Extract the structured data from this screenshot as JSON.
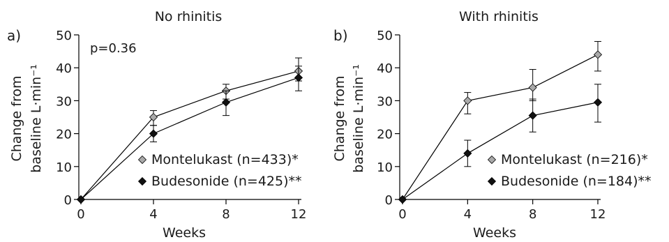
{
  "chart_data": [
    {
      "panel_label": "a)",
      "type": "line",
      "title": "No rhinitis",
      "xlabel": "Weeks",
      "ylabel_lines": [
        "Change from",
        "baseline L·min⁻¹"
      ],
      "annotation": "p=0.36",
      "xlim": [
        0,
        12
      ],
      "ylim": [
        0,
        50
      ],
      "xticks": [
        0,
        4,
        8,
        12
      ],
      "yticks": [
        0,
        10,
        20,
        30,
        40,
        50
      ],
      "x": [
        0,
        4,
        8,
        12
      ],
      "legend_position": "bottom-right",
      "series": [
        {
          "name": "Montelukast (n=433)*",
          "marker": "diamond",
          "color": "#a9a9a9",
          "values": [
            0,
            25,
            33,
            39
          ],
          "err_low": [
            0,
            2.5,
            2.5,
            3
          ],
          "err_high": [
            0,
            2,
            2,
            4
          ]
        },
        {
          "name": "Budesonide (n=425)**",
          "marker": "diamond",
          "color": "#111111",
          "values": [
            0,
            20,
            29.5,
            37
          ],
          "err_low": [
            0,
            2.5,
            4,
            4
          ],
          "err_high": [
            0,
            2.5,
            3.5,
            3.5
          ]
        }
      ]
    },
    {
      "panel_label": "b)",
      "type": "line",
      "title": "With rhinitis",
      "xlabel": "Weeks",
      "ylabel_lines": [
        "Change from",
        "baseline L·min⁻¹"
      ],
      "annotation": "",
      "xlim": [
        0,
        12
      ],
      "ylim": [
        0,
        50
      ],
      "xticks": [
        0,
        4,
        8,
        12
      ],
      "yticks": [
        0,
        10,
        20,
        30,
        40,
        50
      ],
      "x": [
        0,
        4,
        8,
        12
      ],
      "legend_position": "bottom-right",
      "series": [
        {
          "name": "Montelukast (n=216)*",
          "marker": "diamond",
          "color": "#a9a9a9",
          "values": [
            0,
            30,
            34,
            44
          ],
          "err_low": [
            0,
            4,
            4,
            5
          ],
          "err_high": [
            0,
            2.5,
            5.5,
            4
          ]
        },
        {
          "name": "Budesonide (n=184)**",
          "marker": "diamond",
          "color": "#111111",
          "values": [
            0,
            14,
            25.5,
            29.5
          ],
          "err_low": [
            0,
            4,
            5,
            6
          ],
          "err_high": [
            0,
            4,
            5,
            5.5
          ]
        }
      ]
    }
  ]
}
